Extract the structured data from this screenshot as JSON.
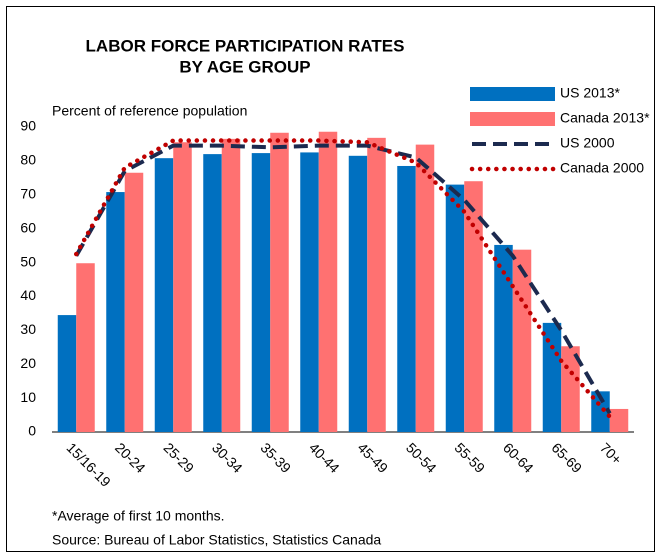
{
  "chart_data": {
    "type": "bar",
    "title": [
      "LABOR FORCE PARTICIPATION RATES",
      "BY AGE GROUP"
    ],
    "y_label": "Percent of reference population",
    "categories": [
      "15/16-19",
      "20-24",
      "25-29",
      "30-34",
      "35-39",
      "40-44",
      "45-49",
      "50-54",
      "55-59",
      "60-64",
      "65-69",
      "70+"
    ],
    "series": [
      {
        "name": "US 2013*",
        "type": "bar",
        "color": "#0070c0",
        "values": [
          34.5,
          70.8,
          80.8,
          82.0,
          82.3,
          82.5,
          81.5,
          78.5,
          73.0,
          55.2,
          32.2,
          12.0
        ]
      },
      {
        "name": "Canada 2013*",
        "type": "bar",
        "color": "#ff7171",
        "values": [
          49.8,
          76.5,
          85.5,
          86.5,
          88.3,
          88.6,
          86.8,
          84.8,
          74.0,
          53.8,
          25.3,
          6.8
        ]
      },
      {
        "name": "US 2000",
        "type": "line",
        "style": "dashed",
        "color": "#1c2a4f",
        "values": [
          52.0,
          77.0,
          84.5,
          84.5,
          84.0,
          84.5,
          84.5,
          81.0,
          68.5,
          52.0,
          30.0,
          5.5
        ]
      },
      {
        "name": "Canada 2000",
        "type": "line",
        "style": "dotted",
        "color": "#c00000",
        "values": [
          52.5,
          78.0,
          86.0,
          86.0,
          86.0,
          86.0,
          85.5,
          79.5,
          65.0,
          43.0,
          21.0,
          4.5
        ]
      }
    ],
    "ylim": [
      0,
      90
    ],
    "yticks": [
      0,
      10,
      20,
      30,
      40,
      50,
      60,
      70,
      80,
      90
    ],
    "legend": "top-right",
    "notes": [
      "*Average of first 10 months.",
      "Source: Bureau of Labor Statistics, Statistics Canada"
    ]
  }
}
